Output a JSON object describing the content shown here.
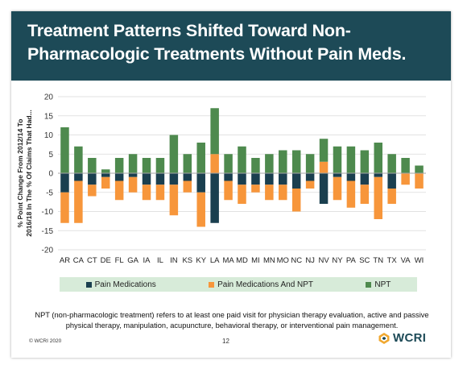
{
  "slide": {
    "title": "Treatment Patterns Shifted Toward Non-Pharmacologic Treatments Without Pain Meds.",
    "footnote": "NPT (non-pharmacologic treatment) refers to at least one paid visit for physician therapy evaluation, active and passive physical therapy, manipulation, acupuncture, behavioral therapy, or interventional pain management.",
    "copyright": "© WCRI 2020",
    "page_number": "12",
    "logo_text": "WCRI"
  },
  "chart_data": {
    "type": "bar",
    "stacked": true,
    "ylabel": "% Point Change From 2012/14 To 2016/18 In The % Of Claims That Had...",
    "ylim": [
      -20,
      20
    ],
    "yticks": [
      20,
      15,
      10,
      5,
      0,
      -5,
      -10,
      -15,
      -20
    ],
    "grid": true,
    "legend_position": "bottom",
    "categories": [
      "AR",
      "CA",
      "CT",
      "DE",
      "FL",
      "GA",
      "IA",
      "IL",
      "IN",
      "KS",
      "KY",
      "LA",
      "MA",
      "MD",
      "MI",
      "MN",
      "MO",
      "NC",
      "NJ",
      "NV",
      "NY",
      "PA",
      "SC",
      "TN",
      "TX",
      "VA",
      "WI"
    ],
    "series": [
      {
        "name": "Pain Medications",
        "color": "#1a3f4f",
        "values": [
          -5,
          -2,
          -3,
          -1,
          -2,
          -1,
          -3,
          -3,
          -3,
          -2,
          -5,
          -13,
          -2,
          -3,
          -3,
          -3,
          -3,
          -4,
          -2,
          -8,
          -1,
          -2,
          -3,
          -1,
          -4,
          0,
          0
        ]
      },
      {
        "name": "Pain Medications And NPT",
        "color": "#f7963b",
        "values": [
          -8,
          -11,
          -3,
          -3,
          -5,
          -4,
          -4,
          -4,
          -8,
          -3,
          -9,
          5,
          -5,
          -5,
          -2,
          -4,
          -4,
          -6,
          -2,
          3,
          -6,
          -7,
          -5,
          -11,
          -4,
          -3,
          -4
        ]
      },
      {
        "name": "NPT",
        "color": "#4e8a4e",
        "values": [
          12,
          7,
          4,
          1,
          4,
          5,
          4,
          4,
          10,
          5,
          8,
          12,
          5,
          7,
          4,
          5,
          6,
          6,
          5,
          6,
          7,
          7,
          6,
          8,
          5,
          4,
          2
        ]
      }
    ]
  }
}
